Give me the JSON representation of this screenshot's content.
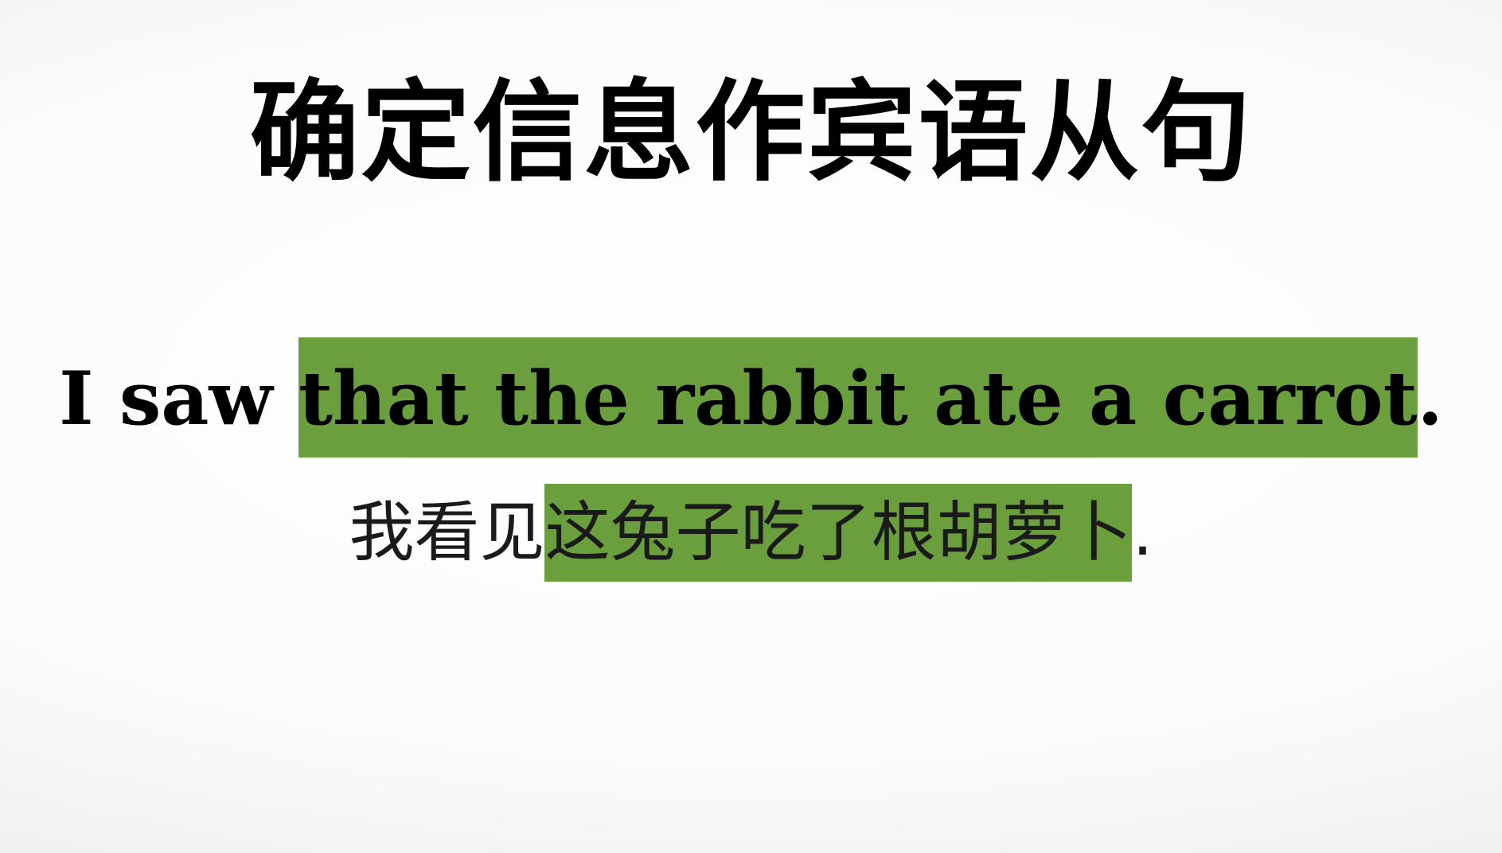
{
  "title": "确定信息作宾语从句",
  "english_sentence": {
    "plain": "I saw ",
    "highlight": "that the rabbit ate a carrot",
    "end": "."
  },
  "chinese_sentence": {
    "plain": "我看见",
    "highlight": "这兔子吃了根胡萝卜",
    "end": "."
  },
  "colors": {
    "highlight": "#6b9f3e",
    "text": "#000000"
  }
}
